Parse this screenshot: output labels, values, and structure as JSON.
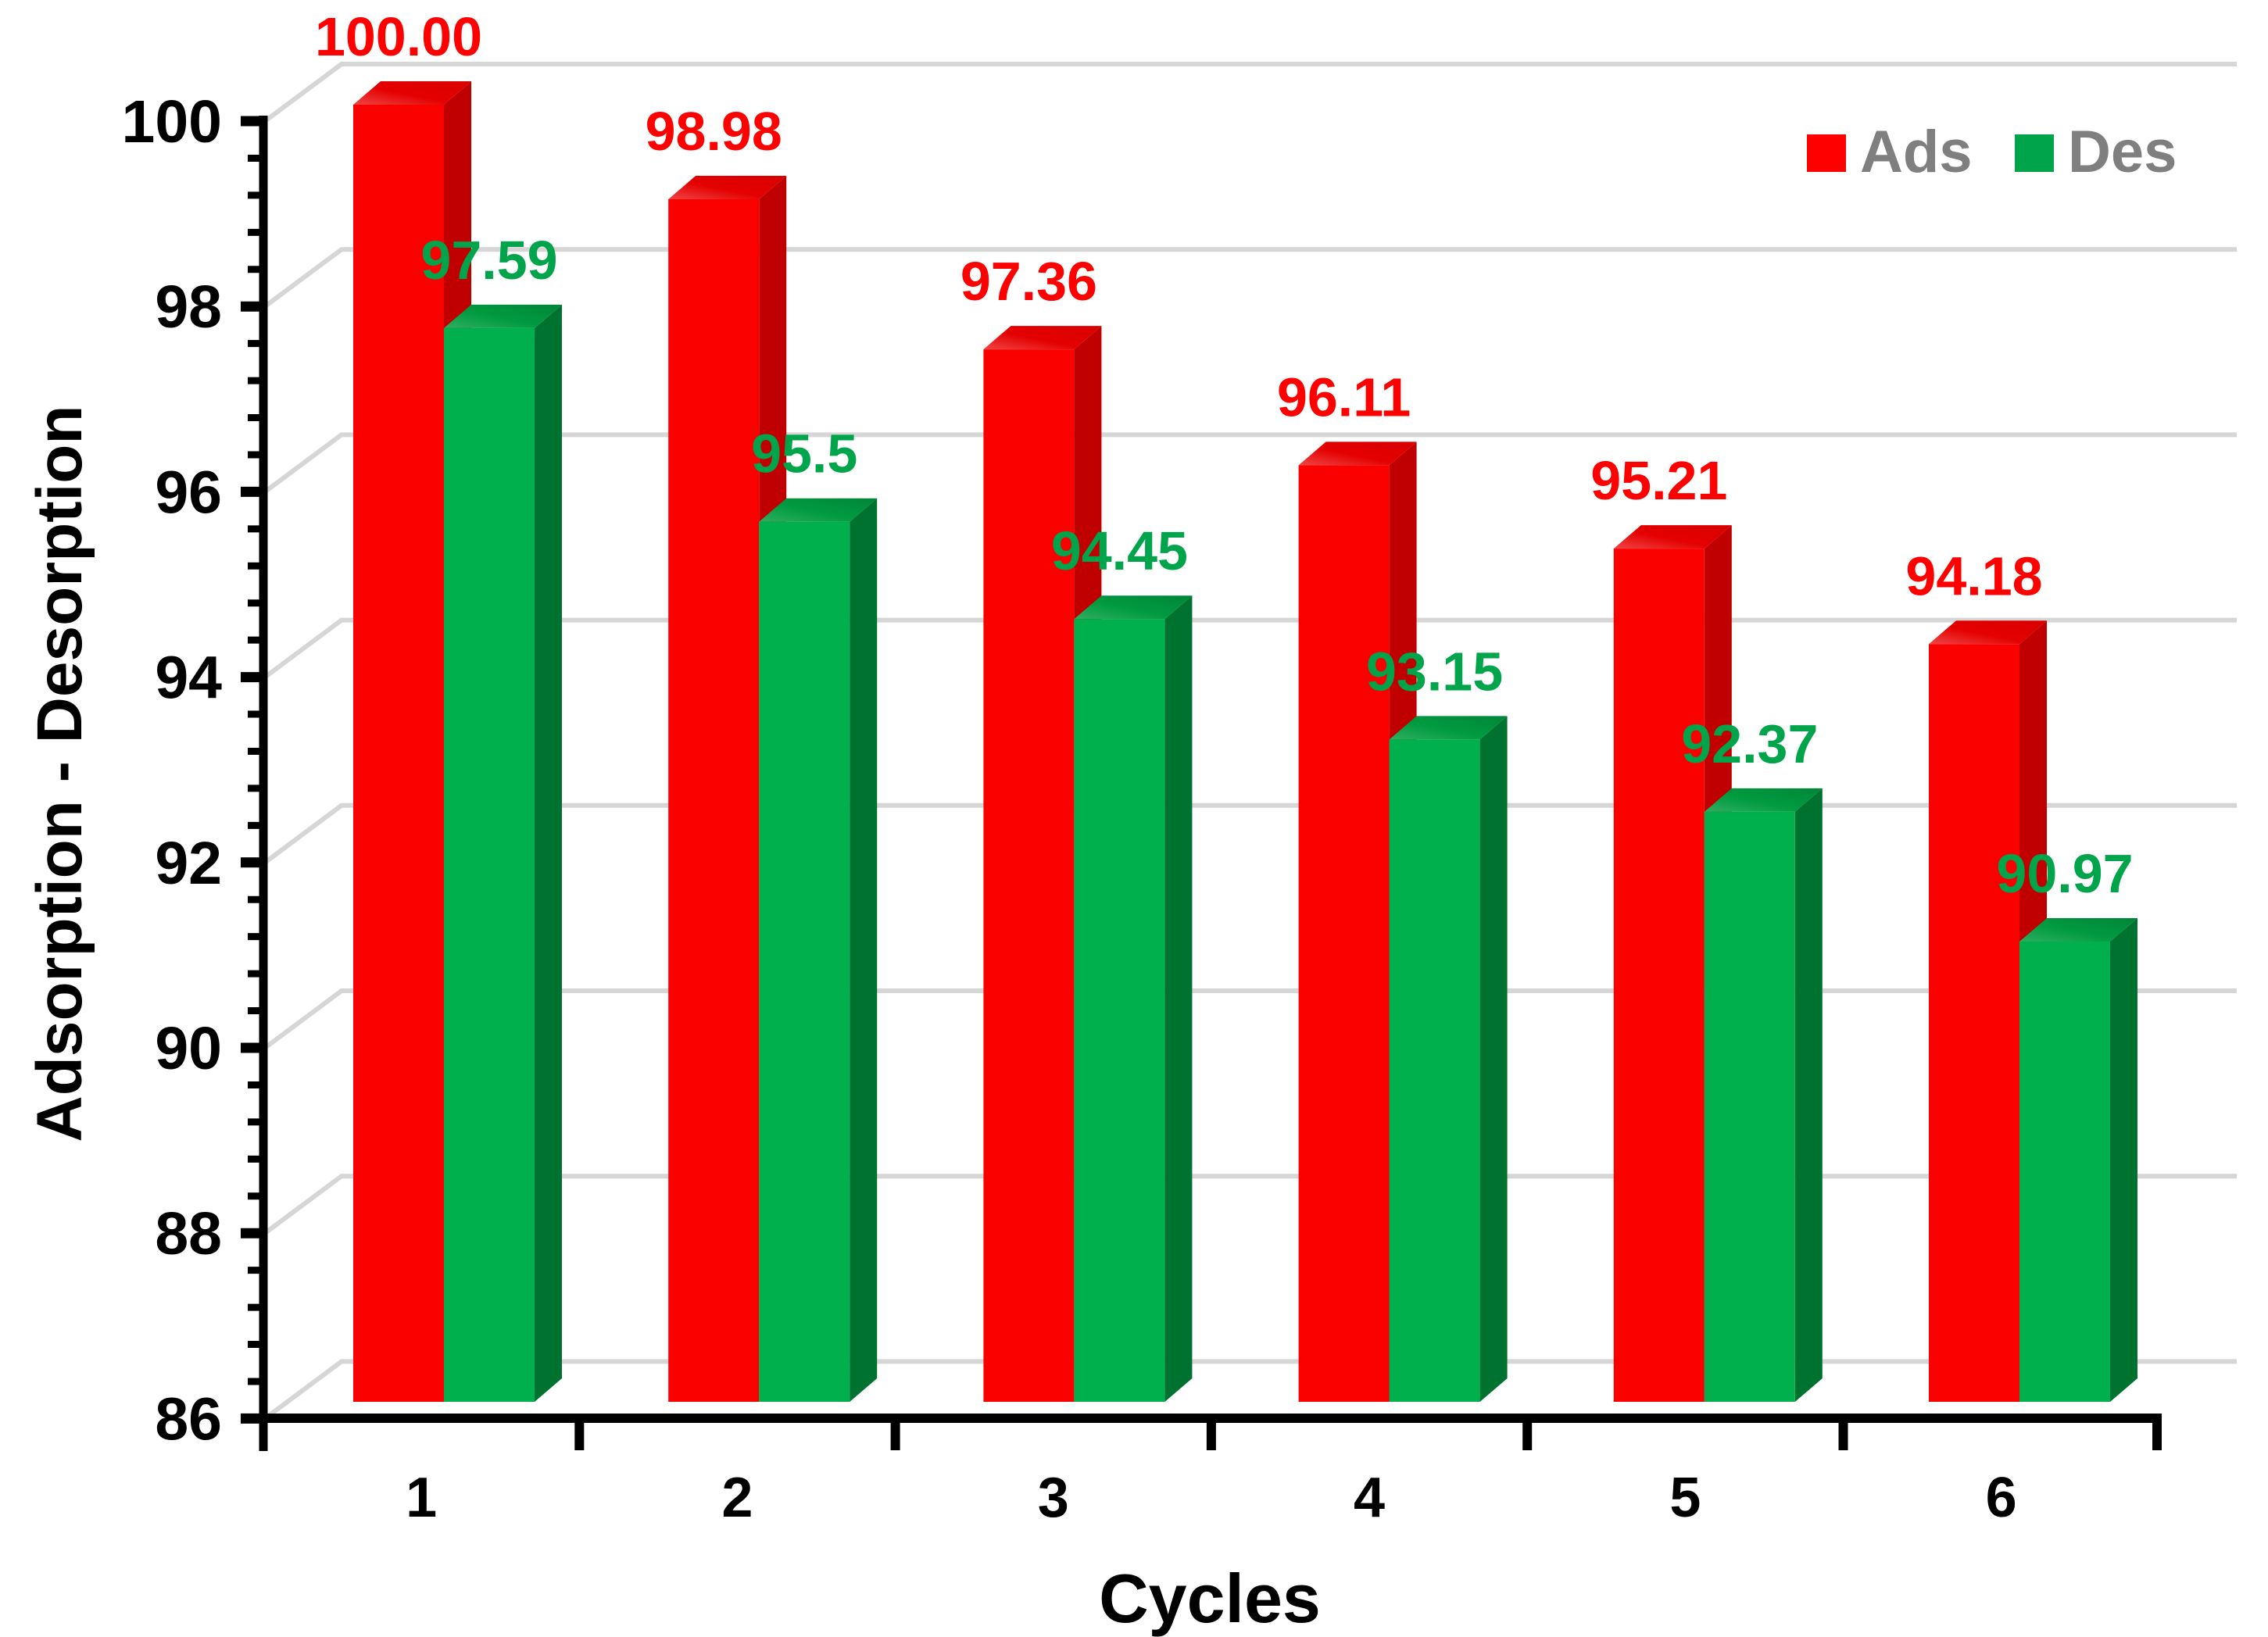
{
  "chart_data": {
    "type": "bar",
    "style": "3d-clustered-column",
    "title": "",
    "categories": [
      "1",
      "2",
      "3",
      "4",
      "5",
      "6"
    ],
    "series": [
      {
        "name": "Ads",
        "values": [
          100.0,
          98.98,
          97.36,
          96.11,
          95.21,
          94.18
        ],
        "labels": [
          "100.00",
          "98.98",
          "97.36",
          "96.11",
          "95.21",
          "94.18"
        ],
        "front_color": "#FA0100",
        "top_color": "#E00000",
        "side_color": "#C00000",
        "label_color": "#FF0000"
      },
      {
        "name": "Des",
        "values": [
          97.59,
          95.5,
          94.45,
          93.15,
          92.37,
          90.97
        ],
        "labels": [
          "97.59",
          "95.5",
          "94.45",
          "93.15",
          "92.37",
          "90.97"
        ],
        "front_color": "#00B04C",
        "top_color": "#009B40",
        "side_color": "#007230",
        "label_color": "#00A44A"
      }
    ],
    "xlabel": "Cycles",
    "ylabel": "Adsorption - Desorption",
    "ylim": [
      86,
      100
    ],
    "ytick_step": 2,
    "ytick_labels": [
      "86",
      "88",
      "90",
      "92",
      "94",
      "96",
      "98",
      "100"
    ],
    "yminor_step": 0.4,
    "grid": {
      "show": true,
      "color": "#D6D6D6"
    },
    "axis_color": "#000000",
    "background": "#FFFFFF",
    "legend": {
      "position": "top-right",
      "text_color": "#7F7F7F",
      "entries": [
        {
          "label": "Ads",
          "color": "#FF0000"
        },
        {
          "label": "Des",
          "color": "#00A44A"
        }
      ]
    }
  }
}
